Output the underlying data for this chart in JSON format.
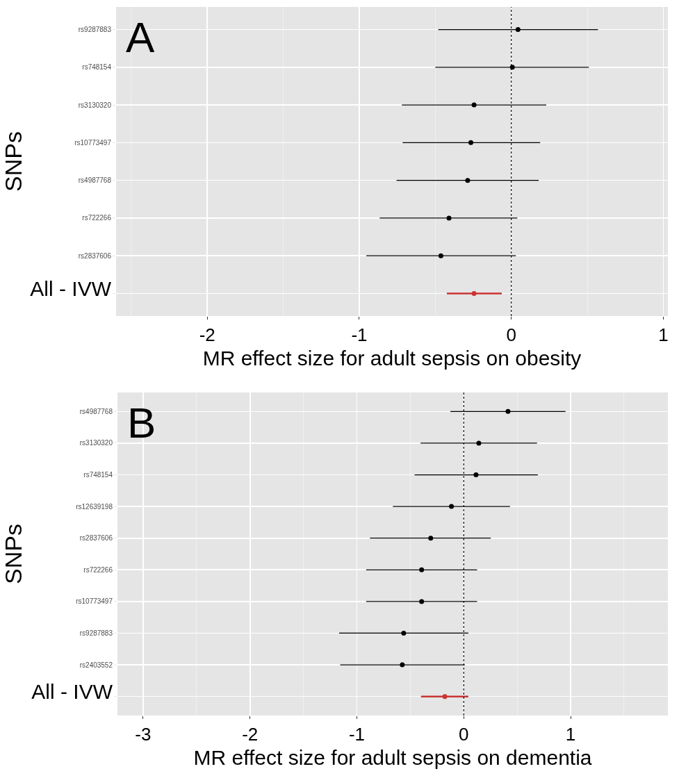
{
  "chart_data": [
    {
      "type": "scatter",
      "orientation": "horizontal",
      "categories": [
        "rs9287883",
        "rs748154",
        "rs3130320",
        "rs10773497",
        "rs4987768",
        "rs722266",
        "rs2837606",
        "All - IVW"
      ],
      "xlabel": "MR effect size for adult sepsis on obesity",
      "ylabel": "SNPs",
      "annotations": [
        "A"
      ],
      "xlim": [
        -2.6,
        1.03
      ],
      "xticks": [
        -2,
        -1,
        0,
        1
      ],
      "grid": true,
      "marker": "circle",
      "ref_lines": [
        {
          "axis": "x",
          "value": 0,
          "color": "#000000",
          "line_style": "dotted"
        }
      ],
      "series": [
        {
          "color": "#000000",
          "values": [
            0.044,
            0.007,
            -0.245,
            -0.266,
            -0.287,
            -0.41,
            -0.463,
            null
          ],
          "errors": [
            [
              -0.48,
              0.57
            ],
            [
              -0.5,
              0.51
            ],
            [
              -0.72,
              0.23
            ],
            [
              -0.715,
              0.19
            ],
            [
              -0.755,
              0.18
            ],
            [
              -0.866,
              0.04
            ],
            [
              -0.954,
              0.03
            ],
            null
          ]
        },
        {
          "color": "#cc3333",
          "values": [
            null,
            null,
            null,
            null,
            null,
            null,
            null,
            -0.245
          ],
          "errors": [
            null,
            null,
            null,
            null,
            null,
            null,
            null,
            [
              -0.424,
              -0.063
            ]
          ]
        }
      ]
    },
    {
      "type": "scatter",
      "orientation": "horizontal",
      "categories": [
        "rs4987768",
        "rs3130320",
        "rs748154",
        "rs12639198",
        "rs2837606",
        "rs722266",
        "rs10773497",
        "rs9287883",
        "rs2403552",
        "All - IVW"
      ],
      "xlabel": "MR effect size for adult sepsis on dementia",
      "ylabel": "SNPs",
      "annotations": [
        "B"
      ],
      "xlim": [
        -3.24,
        1.91
      ],
      "xticks": [
        -3,
        -2,
        -1,
        0,
        1
      ],
      "grid": true,
      "marker": "circle",
      "ref_lines": [
        {
          "axis": "x",
          "value": 0,
          "color": "#000000",
          "line_style": "dotted"
        }
      ],
      "series": [
        {
          "color": "#000000",
          "values": [
            0.414,
            0.141,
            0.115,
            -0.115,
            -0.309,
            -0.394,
            -0.394,
            -0.562,
            -0.575,
            null
          ],
          "errors": [
            [
              -0.125,
              0.952
            ],
            [
              -0.404,
              0.686
            ],
            [
              -0.46,
              0.693
            ],
            [
              -0.663,
              0.433
            ],
            [
              -0.877,
              0.253
            ],
            [
              -0.913,
              0.125
            ],
            [
              -0.913,
              0.125
            ],
            [
              -1.166,
              0.043
            ],
            [
              -1.156,
              0.01
            ],
            null
          ]
        },
        {
          "color": "#cc3333",
          "values": [
            null,
            null,
            null,
            null,
            null,
            null,
            null,
            null,
            null,
            -0.177
          ],
          "errors": [
            null,
            null,
            null,
            null,
            null,
            null,
            null,
            null,
            null,
            [
              -0.4,
              0.043
            ]
          ]
        }
      ]
    }
  ]
}
